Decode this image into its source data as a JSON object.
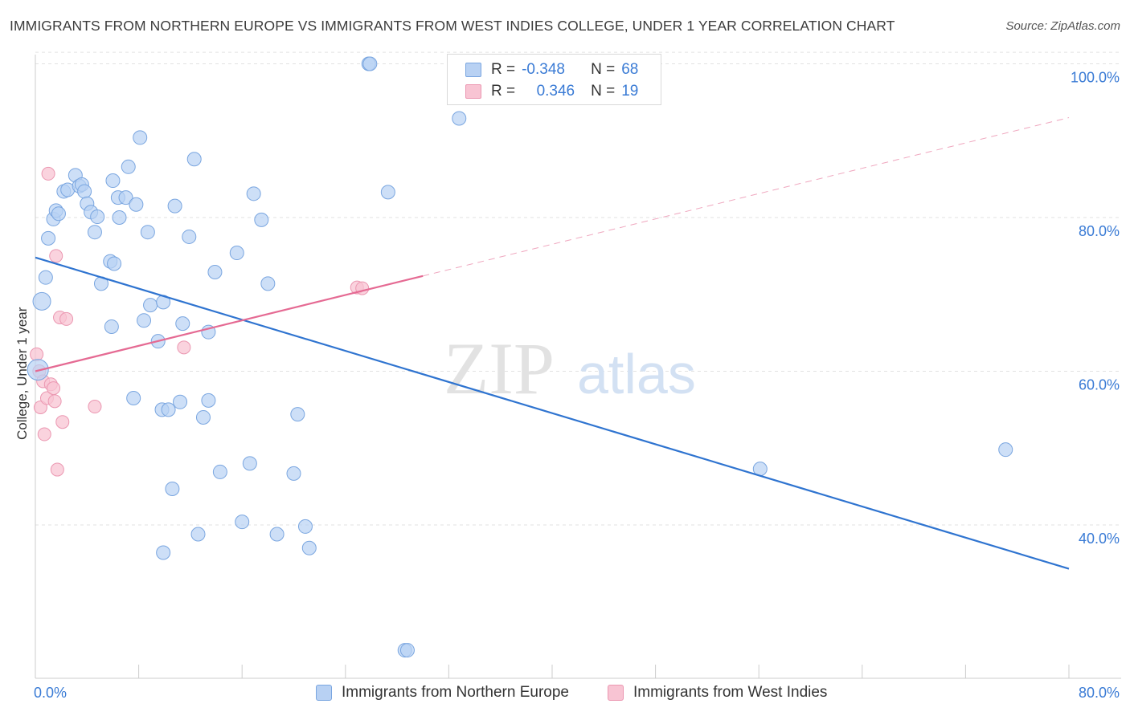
{
  "header": {
    "title": "IMMIGRANTS FROM NORTHERN EUROPE VS IMMIGRANTS FROM WEST INDIES COLLEGE, UNDER 1 YEAR CORRELATION CHART",
    "source": "Source: ZipAtlas.com"
  },
  "legend": {
    "row1": {
      "r_label": "R =",
      "r_value": "-0.348",
      "n_label": "N =",
      "n_value": "68"
    },
    "row2": {
      "r_label": "R =",
      "r_value": "0.346",
      "n_label": "N =",
      "n_value": "19"
    }
  },
  "watermark": {
    "zip": "ZIP",
    "atlas": "atlas"
  },
  "colors": {
    "blue_fill": "#b8d1f3",
    "blue_stroke": "#7aa6e0",
    "blue_line": "#2f74d0",
    "pink_fill": "#f8c4d3",
    "pink_stroke": "#eb97b1",
    "pink_line": "#e56a93",
    "axis_text": "#3a7bd5",
    "grid": "#e2e2e2"
  },
  "chart_data": {
    "type": "scatter",
    "title": "IMMIGRANTS FROM NORTHERN EUROPE VS IMMIGRANTS FROM WEST INDIES COLLEGE, UNDER 1 YEAR CORRELATION CHART",
    "xlabel": "",
    "ylabel": "College, Under 1 year",
    "xlim": [
      0,
      80
    ],
    "ylim": [
      20,
      102
    ],
    "x_tick_labels": [
      "0.0%",
      "80.0%"
    ],
    "y_ticks": [
      40,
      60,
      80,
      100
    ],
    "y_tick_labels": [
      "40.0%",
      "60.0%",
      "80.0%",
      "100.0%"
    ],
    "grid": true,
    "legend_position": "top-center",
    "series": [
      {
        "name": "Immigrants from Northern Europe",
        "r": -0.348,
        "n": 68,
        "trend": {
          "x": [
            0,
            80
          ],
          "y": [
            74.8,
            34.3
          ],
          "style": "solid"
        },
        "points": [
          [
            0.2,
            60.2
          ],
          [
            0.5,
            69.1
          ],
          [
            0.8,
            72.2
          ],
          [
            1.0,
            77.3
          ],
          [
            1.4,
            79.8
          ],
          [
            1.6,
            80.9
          ],
          [
            1.8,
            80.5
          ],
          [
            2.2,
            83.4
          ],
          [
            2.5,
            83.6
          ],
          [
            3.1,
            85.5
          ],
          [
            3.4,
            84.1
          ],
          [
            3.6,
            84.3
          ],
          [
            3.8,
            83.4
          ],
          [
            4.0,
            81.8
          ],
          [
            4.3,
            80.7
          ],
          [
            4.6,
            78.1
          ],
          [
            4.8,
            80.1
          ],
          [
            5.1,
            71.4
          ],
          [
            5.8,
            74.3
          ],
          [
            5.9,
            65.8
          ],
          [
            6.0,
            84.8
          ],
          [
            6.1,
            74.0
          ],
          [
            6.4,
            82.6
          ],
          [
            6.5,
            80.0
          ],
          [
            7.0,
            82.6
          ],
          [
            7.2,
            86.6
          ],
          [
            7.6,
            56.5
          ],
          [
            7.8,
            81.7
          ],
          [
            8.1,
            90.4
          ],
          [
            8.4,
            66.6
          ],
          [
            8.7,
            78.1
          ],
          [
            8.9,
            68.6
          ],
          [
            9.5,
            63.9
          ],
          [
            9.8,
            55.0
          ],
          [
            9.9,
            69.0
          ],
          [
            9.9,
            36.4
          ],
          [
            10.3,
            55.0
          ],
          [
            10.6,
            44.7
          ],
          [
            10.8,
            81.5
          ],
          [
            11.2,
            56.0
          ],
          [
            11.4,
            66.2
          ],
          [
            11.9,
            77.5
          ],
          [
            12.3,
            87.6
          ],
          [
            12.6,
            38.8
          ],
          [
            13.0,
            54.0
          ],
          [
            13.4,
            56.2
          ],
          [
            13.9,
            72.9
          ],
          [
            14.3,
            46.9
          ],
          [
            15.6,
            75.4
          ],
          [
            16.0,
            40.4
          ],
          [
            16.6,
            48.0
          ],
          [
            16.9,
            83.1
          ],
          [
            17.5,
            79.7
          ],
          [
            18.0,
            71.4
          ],
          [
            18.7,
            38.8
          ],
          [
            20.0,
            46.7
          ],
          [
            20.3,
            54.4
          ],
          [
            20.9,
            39.8
          ],
          [
            21.2,
            37.0
          ],
          [
            25.8,
            100.0
          ],
          [
            25.9,
            100.0
          ],
          [
            27.3,
            83.3
          ],
          [
            28.6,
            23.7
          ],
          [
            28.8,
            23.7
          ],
          [
            32.8,
            92.9
          ],
          [
            56.1,
            47.3
          ],
          [
            75.1,
            49.8
          ],
          [
            13.4,
            65.1
          ]
        ]
      },
      {
        "name": "Immigrants from West Indies",
        "r": 0.346,
        "n": 19,
        "trend": {
          "x": [
            0,
            30
          ],
          "y": [
            60.0,
            72.4
          ],
          "extended": {
            "x": [
              30,
              80
            ],
            "y": [
              72.4,
              93.0
            ]
          },
          "style": "solid then dashed"
        },
        "points": [
          [
            0.1,
            62.2
          ],
          [
            0.3,
            60.0
          ],
          [
            0.4,
            55.3
          ],
          [
            0.6,
            58.7
          ],
          [
            0.7,
            51.8
          ],
          [
            0.9,
            56.5
          ],
          [
            1.0,
            85.7
          ],
          [
            1.2,
            58.3
          ],
          [
            1.4,
            57.8
          ],
          [
            1.5,
            56.1
          ],
          [
            1.6,
            75.0
          ],
          [
            1.7,
            47.2
          ],
          [
            1.9,
            67.0
          ],
          [
            2.1,
            53.4
          ],
          [
            2.4,
            66.8
          ],
          [
            4.6,
            55.4
          ],
          [
            11.5,
            63.1
          ],
          [
            24.9,
            70.9
          ],
          [
            25.3,
            70.8
          ]
        ]
      }
    ]
  },
  "bottom_legend": {
    "item1": "Immigrants from Northern Europe",
    "item2": "Immigrants from West Indies"
  }
}
